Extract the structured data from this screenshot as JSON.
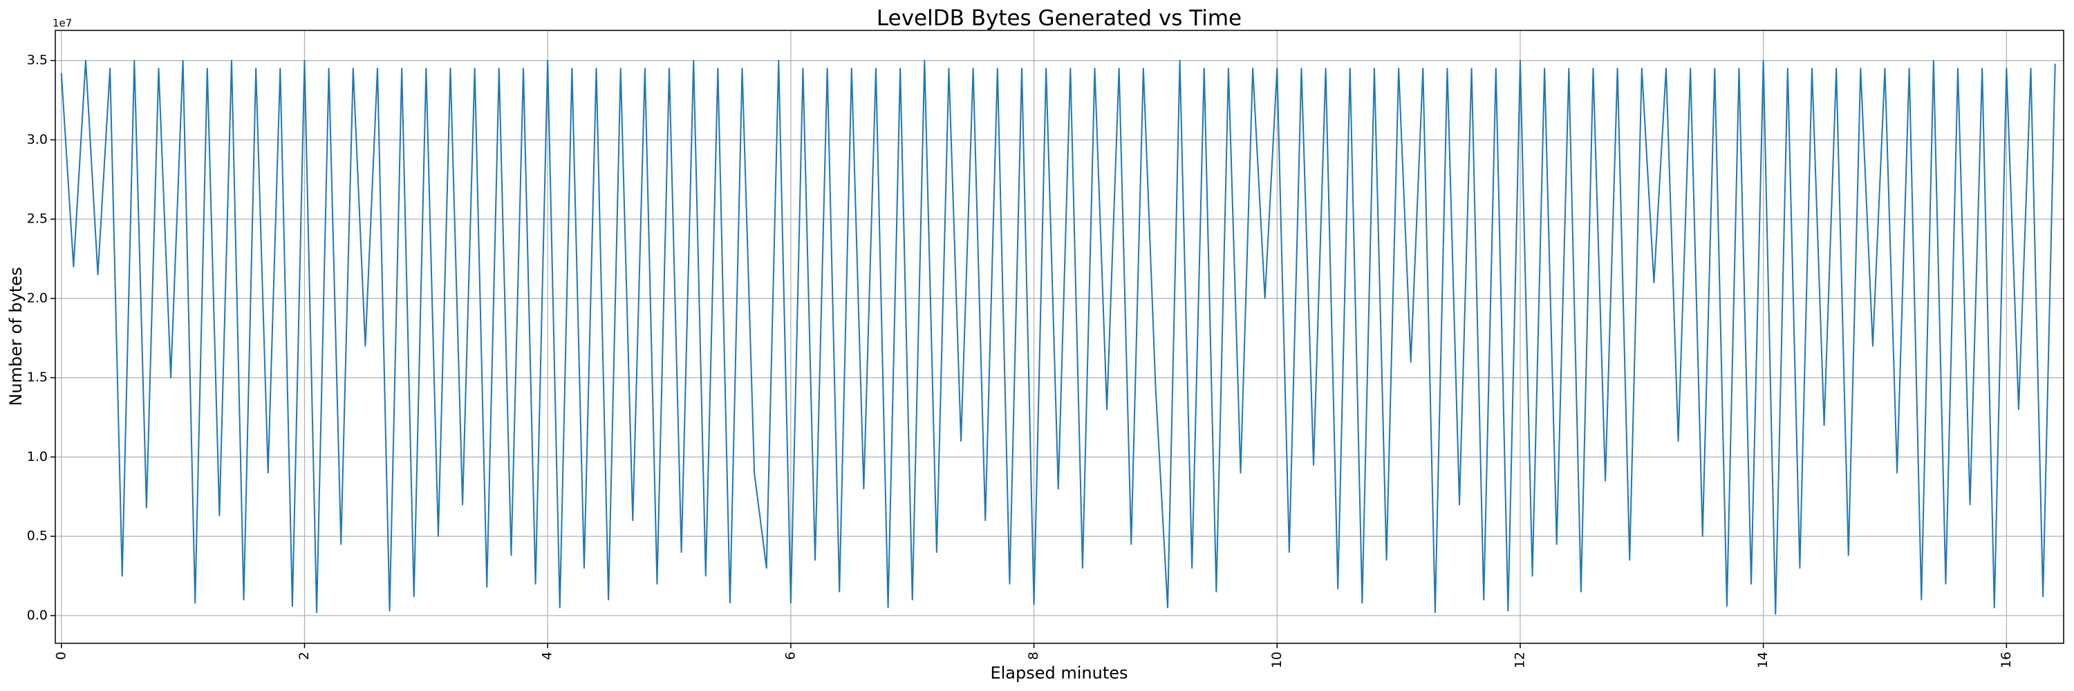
{
  "chart_data": {
    "type": "line",
    "title": "LevelDB Bytes Generated vs Time",
    "x_label": "Elapsed minutes",
    "y_label": "Number of bytes",
    "y_offset_label": "1e7",
    "grid": true,
    "xlim": [
      -0.05,
      16.47
    ],
    "xticks": [
      0,
      2,
      4,
      6,
      8,
      10,
      12,
      14,
      16
    ],
    "ylim": [
      -1750000,
      36900000
    ],
    "yticks": [
      {
        "value": 0,
        "label": "0.0"
      },
      {
        "value": 5000000,
        "label": "0.5"
      },
      {
        "value": 10000000,
        "label": "1.0"
      },
      {
        "value": 15000000,
        "label": "1.5"
      },
      {
        "value": 20000000,
        "label": "2.0"
      },
      {
        "value": 25000000,
        "label": "2.5"
      },
      {
        "value": 30000000,
        "label": "3.0"
      },
      {
        "value": 35000000,
        "label": "3.5"
      }
    ],
    "x": [
      0,
      0.1,
      0.2,
      0.3,
      0.4,
      0.5,
      0.6,
      0.7,
      0.8,
      0.9,
      1,
      1.1,
      1.2,
      1.3,
      1.4,
      1.5,
      1.6,
      1.7,
      1.8,
      1.9,
      2,
      2.1,
      2.2,
      2.3,
      2.4,
      2.5,
      2.6,
      2.7,
      2.8,
      2.9,
      3,
      3.1,
      3.2,
      3.3,
      3.4,
      3.5,
      3.6,
      3.7,
      3.8,
      3.9,
      4,
      4.1,
      4.2,
      4.3,
      4.4,
      4.5,
      4.6,
      4.7,
      4.8,
      4.9,
      5,
      5.1,
      5.2,
      5.3,
      5.4,
      5.5,
      5.6,
      5.7,
      5.8,
      5.9,
      6,
      6.1,
      6.2,
      6.3,
      6.4,
      6.5,
      6.6,
      6.7,
      6.8,
      6.9,
      7,
      7.1,
      7.2,
      7.3,
      7.4,
      7.5,
      7.6,
      7.7,
      7.8,
      7.9,
      8,
      8.1,
      8.2,
      8.3,
      8.4,
      8.5,
      8.6,
      8.7,
      8.8,
      8.9,
      9,
      9.1,
      9.2,
      9.3,
      9.4,
      9.5,
      9.6,
      9.7,
      9.8,
      9.9,
      10,
      10.1,
      10.2,
      10.3,
      10.4,
      10.5,
      10.6,
      10.7,
      10.8,
      10.9,
      11,
      11.1,
      11.2,
      11.3,
      11.4,
      11.5,
      11.6,
      11.7,
      11.8,
      11.9,
      12,
      12.1,
      12.2,
      12.3,
      12.4,
      12.5,
      12.6,
      12.7,
      12.8,
      12.9,
      13,
      13.1,
      13.2,
      13.3,
      13.4,
      13.5,
      13.6,
      13.7,
      13.8,
      13.9,
      14,
      14.1,
      14.2,
      14.3,
      14.4,
      14.5,
      14.6,
      14.7,
      14.8,
      14.9,
      15,
      15.1,
      15.2,
      15.3,
      15.4,
      15.5,
      15.6,
      15.7,
      15.8,
      15.9,
      16,
      16.1,
      16.2,
      16.3,
      16.4
    ],
    "series": [
      {
        "color": "#1f77b4",
        "values": [
          34200000,
          22000000,
          35000000,
          21500000,
          34500000,
          2500000,
          35000000,
          6800000,
          34500000,
          15000000,
          35000000,
          800000,
          34500000,
          6300000,
          35000000,
          1000000,
          34500000,
          9000000,
          34500000,
          600000,
          35000000,
          200000,
          34500000,
          4500000,
          34500000,
          17000000,
          34500000,
          300000,
          34500000,
          1200000,
          34500000,
          5000000,
          34500000,
          7000000,
          34500000,
          1800000,
          34500000,
          3800000,
          34500000,
          2000000,
          35000000,
          500000,
          34500000,
          3000000,
          34500000,
          1000000,
          34500000,
          6000000,
          34500000,
          2000000,
          34500000,
          4000000,
          35000000,
          2500000,
          34500000,
          800000,
          34500000,
          9000000,
          3000000,
          35000000,
          800000,
          34500000,
          3500000,
          34500000,
          1500000,
          34500000,
          8000000,
          34500000,
          500000,
          34500000,
          1000000,
          35000000,
          4000000,
          34500000,
          11000000,
          34500000,
          6000000,
          34500000,
          2000000,
          34500000,
          700000,
          34500000,
          8000000,
          34500000,
          3000000,
          34500000,
          13000000,
          34500000,
          4500000,
          34500000,
          14500000,
          500000,
          35000000,
          3000000,
          34500000,
          1500000,
          34500000,
          9000000,
          34500000,
          20000000,
          34500000,
          4000000,
          34500000,
          9500000,
          34500000,
          1700000,
          34500000,
          800000,
          34500000,
          3500000,
          34500000,
          16000000,
          34500000,
          200000,
          34500000,
          7000000,
          34500000,
          1000000,
          34500000,
          300000,
          35000000,
          2500000,
          34500000,
          4500000,
          34500000,
          1500000,
          34500000,
          8500000,
          34500000,
          3500000,
          34500000,
          21000000,
          34500000,
          11000000,
          34500000,
          5000000,
          34500000,
          600000,
          34500000,
          2000000,
          35000000,
          100000,
          34500000,
          3000000,
          34500000,
          12000000,
          34500000,
          3800000,
          34500000,
          17000000,
          34500000,
          9000000,
          34500000,
          1000000,
          35000000,
          2000000,
          34500000,
          7000000,
          34500000,
          500000,
          34500000,
          13000000,
          34500000,
          1200000,
          34800000
        ]
      }
    ]
  }
}
